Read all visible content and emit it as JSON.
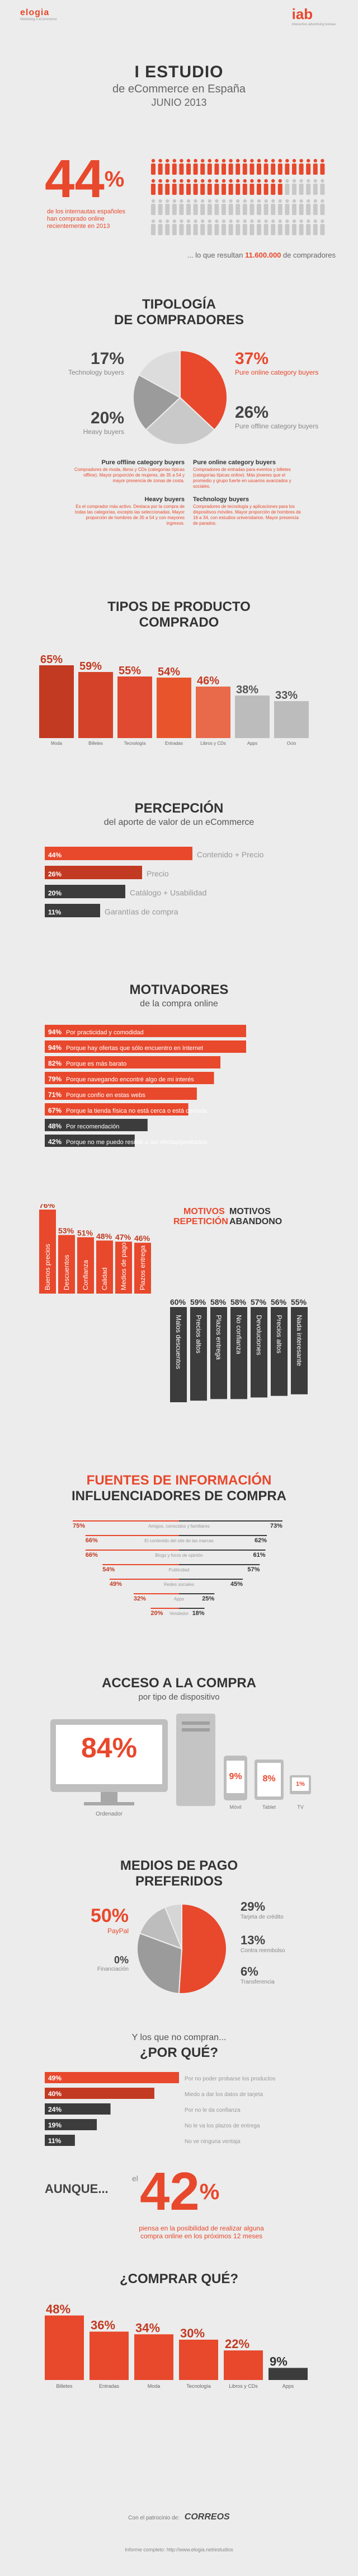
{
  "header": {
    "left_logo": "elogia",
    "left_tagline": "Marketing 4 eCommerce",
    "right_logo": "iab",
    "right_tagline": "interactive advertising bureau"
  },
  "title": {
    "line1": "I ESTUDIO",
    "line2": "de eCommerce en España",
    "line3": "JUNIO 2013"
  },
  "intro": {
    "percent": "44",
    "percent_sign": "%",
    "desc": "de los internautas españoles han comprado online recientemente en 2013",
    "note_prefix": "... lo que resultan",
    "note_value": "11.600.000",
    "note_suffix": "de compradores"
  },
  "tipologia": {
    "title_line1": "TIPOLOGÍA",
    "title_line2": "DE COMPRADORES",
    "chart_data": {
      "type": "pie",
      "slices": [
        {
          "label": "Pure online category buyers",
          "value": 37,
          "color": "#e8482c"
        },
        {
          "label": "Pure offline category buyers",
          "value": 26,
          "color": "#c9c9c9"
        },
        {
          "label": "Heavy buyers",
          "value": 20,
          "color": "#9b9b9b"
        },
        {
          "label": "Technology buyers",
          "value": 17,
          "color": "#dcdcdc"
        }
      ]
    },
    "legend": [
      {
        "pct": "17%",
        "label": "Technology buyers"
      },
      {
        "pct": "20%",
        "label": "Heavy buyers"
      },
      {
        "pct": "37%",
        "label": "Pure online category buyers"
      },
      {
        "pct": "26%",
        "label": "Pure offline category buyers"
      }
    ],
    "descriptions": [
      {
        "title": "Pure offline category buyers",
        "text": "Compradores de moda, libros y CDs (categorías típicas offline). Mayor proporción de mujeres, de 35 a 54 y mayor presencia de zonas de costa."
      },
      {
        "title": "Pure online category buyers",
        "text": "Compradores de entradas para eventos y billetes (categorías típicas online). Más jóvenes que el promedio y grupo fuerte en usuarios avanzados y sociales."
      },
      {
        "title": "Heavy buyers",
        "text": "Es el comprador más activo. Destaca por la compra de todas las categorías, excepto las seleccionadas. Mayor proporción de hombres de 35 a 54 y con mayores ingresos."
      },
      {
        "title": "Technology buyers",
        "text": "Compradores de tecnología y aplicaciones para los dispositivos móviles. Mayor proporción de hombres de 16 a 34, con estudios universitarios. Mayor presencia de parados."
      }
    ]
  },
  "tipos": {
    "title_line1": "TIPOS DE PRODUCTO",
    "title_line2": "COMPRADO",
    "chart_data": {
      "type": "bar",
      "categories": [
        "Moda",
        "Billetes",
        "Tecnología",
        "Entradas",
        "Libros y CDs",
        "Apps",
        "Ocio"
      ],
      "values": [
        65,
        59,
        55,
        54,
        46,
        38,
        33
      ],
      "labels": [
        "65%",
        "59%",
        "55%",
        "54%",
        "46%",
        "38%",
        "33%"
      ]
    }
  },
  "percepcion": {
    "title": "PERCEPCIÓN",
    "subtitle": "del aporte de valor de un eCommerce",
    "chart_data": {
      "type": "bar",
      "categories": [
        "Contenido + Precio",
        "Precio",
        "Catálogo + Usabilidad",
        "Garantías de compra"
      ],
      "values": [
        44,
        26,
        20,
        11
      ],
      "labels": [
        "44%",
        "26%",
        "20%",
        "11%"
      ]
    }
  },
  "motivadores": {
    "title": "MOTIVADORES",
    "subtitle": "de la compra online",
    "chart_data": {
      "type": "bar",
      "categories": [
        "Por practicidad y comodidad",
        "Porque hay ofertas que sólo encuentro en Internet",
        "Porque es más barato",
        "Porque navegando encontré algo de mi interés",
        "Porque confío en estas webs",
        "Porque la tienda física no está cerca o está cerrada",
        "Por recomendación",
        "Porque no me puedo resistir a las ofertas/productos"
      ],
      "values": [
        94,
        94,
        82,
        79,
        71,
        67,
        48,
        42
      ],
      "labels": [
        "94%",
        "94%",
        "82%",
        "79%",
        "71%",
        "67%",
        "48%",
        "42%"
      ]
    }
  },
  "repeticion": {
    "legend_repeticion": "MOTIVOS REPETICIÓN",
    "legend_abandono": "MOTIVOS ABANDONO",
    "chart_data": [
      {
        "type": "bar",
        "series_name": "MOTIVOS REPETICIÓN",
        "categories": [
          "Buenos precios",
          "Descuentos",
          "Confianza",
          "Calidad",
          "Medios de pago",
          "Plazos entrega"
        ],
        "values": [
          76,
          53,
          51,
          48,
          47,
          46
        ],
        "labels": [
          "76%",
          "53%",
          "51%",
          "48%",
          "47%",
          "46%"
        ]
      },
      {
        "type": "bar",
        "series_name": "MOTIVOS ABANDONO",
        "categories": [
          "Malos descuentos",
          "Precios altos",
          "Plazos entrega",
          "No confianza",
          "Devoluciones",
          "Precios altos",
          "Nada interesante"
        ],
        "values": [
          60,
          59,
          58,
          58,
          57,
          56,
          55
        ],
        "labels": [
          "60%",
          "59%",
          "58%",
          "58%",
          "57%",
          "56%",
          "55%"
        ]
      }
    ]
  },
  "fuentes": {
    "title_line1": "FUENTES DE INFORMACIÓN",
    "title_line2": "INFLUENCIADORES DE COMPRA",
    "chart_data": {
      "type": "bar",
      "categories": [
        "Amigos, conocidos y familiares",
        "El contenido del site de las marcas",
        "Blogs y foros de opinión",
        "Publicidad",
        "Redes sociales",
        "Apps",
        "Vendedor"
      ],
      "series": [
        {
          "name": "left",
          "values": [
            75,
            66,
            66,
            54,
            49,
            32,
            20
          ]
        },
        {
          "name": "right",
          "values": [
            73,
            62,
            61,
            57,
            45,
            25,
            18
          ]
        }
      ],
      "left_labels": [
        "75%",
        "66%",
        "66%",
        "54%",
        "49%",
        "32%",
        "20%"
      ],
      "right_labels": [
        "73%",
        "62%",
        "61%",
        "57%",
        "45%",
        "25%",
        "18%"
      ]
    }
  },
  "acceso": {
    "title": "ACCESO A LA COMPRA",
    "subtitle": "por tipo de dispositivo",
    "devices": [
      {
        "label": "Ordenador",
        "pct": "84%"
      },
      {
        "label": "Móvil",
        "pct": "9%"
      },
      {
        "label": "Tablet",
        "pct": "8%"
      },
      {
        "label": "TV",
        "pct": "1%"
      }
    ]
  },
  "pago": {
    "title_line1": "MEDIOS DE PAGO",
    "title_line2": "PREFERIDOS",
    "chart_data": {
      "type": "pie",
      "slices": [
        {
          "label": "PayPal",
          "value": 50,
          "color": "#e8482c"
        },
        {
          "label": "Tarjeta de crédito",
          "value": 29,
          "color": "#9b9b9b"
        },
        {
          "label": "Contra reembolso",
          "value": 13,
          "color": "#bdbdbd"
        },
        {
          "label": "Transferencia",
          "value": 6,
          "color": "#d6d6d6"
        },
        {
          "label": "Financiación",
          "value": 0,
          "color": "#eeeeee"
        }
      ]
    },
    "labels": [
      {
        "pct": "50%",
        "label": "PayPal"
      },
      {
        "pct": "0%",
        "label": "Financiación"
      },
      {
        "pct": "29%",
        "label": "Tarjeta de crédito"
      },
      {
        "pct": "13%",
        "label": "Contra reembolso"
      },
      {
        "pct": "6%",
        "label": "Transferencia"
      }
    ]
  },
  "porque": {
    "pre": "Y los que no compran...",
    "title": "¿POR QUÉ?",
    "chart_data": {
      "type": "bar",
      "categories": [
        "Por no poder probarse los productos",
        "Miedo a dar los datos de tarjeta",
        "Por no le da confianza",
        "No le va los plazos de entrega",
        "No ve ninguna ventaja"
      ],
      "values": [
        49,
        40,
        24,
        19,
        11
      ],
      "labels": [
        "49%",
        "40%",
        "24%",
        "19%",
        "11%"
      ]
    }
  },
  "aunque": {
    "lead": "AUNQUE...",
    "el": "el",
    "percent": "42",
    "percent_sign": "%",
    "text": "piensa en la posibilidad de realizar alguna compra online en los próximos 12 meses"
  },
  "comprar": {
    "title": "¿COMPRAR QUÉ?",
    "chart_data": {
      "type": "bar",
      "categories": [
        "Billetes",
        "Entradas",
        "Moda",
        "Tecnología",
        "Libros y CDs",
        "Apps"
      ],
      "values": [
        48,
        36,
        34,
        30,
        22,
        9
      ],
      "labels": [
        "48%",
        "36%",
        "34%",
        "30%",
        "22%",
        "9%"
      ]
    }
  },
  "footer": {
    "sponsor_prefix": "Con el patrocinio de:",
    "sponsor": "CORREOS",
    "link": "Informe completo: http://www.elogia.net/estudios"
  },
  "colors": {
    "accent": "#e8482c",
    "accent_dark": "#c23a22",
    "bar_dark": "#3c3c3c",
    "bar_grey": "#a8a8a8",
    "bg": "#ececec"
  }
}
